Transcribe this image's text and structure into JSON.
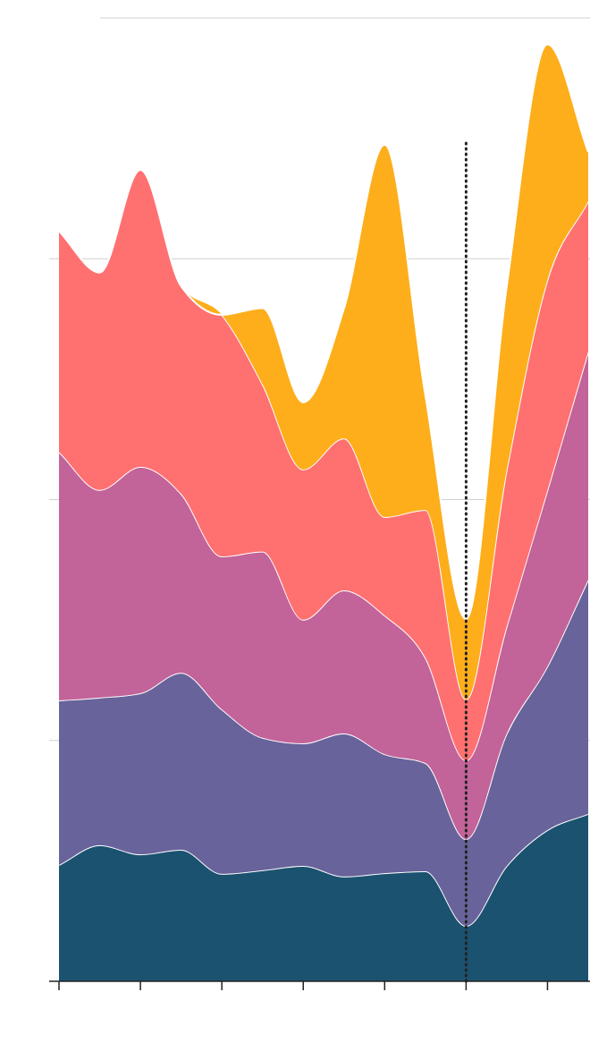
{
  "chart_data": {
    "type": "area",
    "stacked": true,
    "x": [
      0,
      0.5,
      1,
      1.5,
      2,
      2.5,
      3,
      3.5,
      4,
      4.5,
      5,
      5.5,
      6,
      6.5
    ],
    "series": [
      {
        "color": "#1b5270",
        "values": [
          48.3,
          56.5,
          52.7,
          54.6,
          44.6,
          46.1,
          47.9,
          43.5,
          44.9,
          45.7,
          23.0,
          47.9,
          62.8,
          69.5
        ]
      },
      {
        "color": "#68639a",
        "values": [
          68.3,
          61.3,
          66.9,
          73.5,
          68.3,
          55.0,
          50.9,
          59.4,
          49.4,
          44.9,
          36.0,
          55.0,
          68.0,
          97.3
        ]
      },
      {
        "color": "#c26399",
        "values": [
          103.2,
          86.2,
          94.0,
          74.3,
          63.5,
          77.3,
          51.3,
          59.4,
          57.6,
          43.8,
          32.7,
          44.6,
          73.2,
          94.7
        ]
      },
      {
        "color": "#ff7070",
        "values": [
          91.7,
          90.3,
          123.3,
          86.2,
          100.3,
          69.5,
          62.4,
          63.1,
          40.9,
          61.3,
          25.3,
          65.0,
          87.3,
          62.4
        ]
      },
      {
        "color": "#fdae1a",
        "values": [
          0,
          0,
          0,
          0,
          0,
          31.6,
          27.9,
          53.9,
          154.5,
          47.5,
          33.4,
          76.1,
          97.7,
          20.4
        ]
      }
    ],
    "xlim": [
      0,
      6.5
    ],
    "xticks": [
      0,
      1,
      2,
      3,
      4,
      5,
      6
    ],
    "ylim": [
      0,
      400
    ],
    "yticks": [
      0,
      100,
      200,
      300,
      400
    ],
    "grid": true,
    "vline": 5
  }
}
